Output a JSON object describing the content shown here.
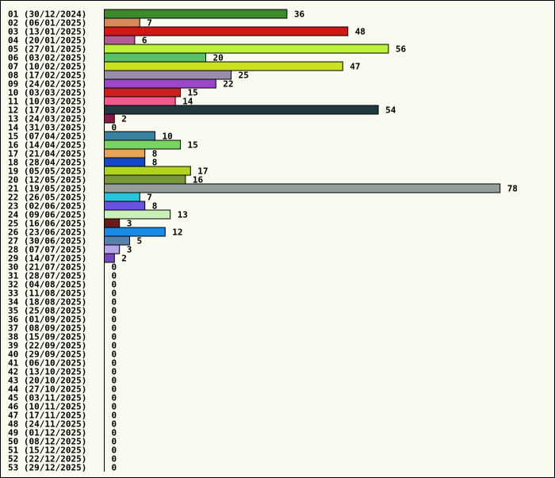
{
  "chart_data": {
    "type": "bar",
    "orientation": "horizontal",
    "title": "",
    "xlabel": "",
    "ylabel": "",
    "xlim": [
      0,
      78
    ],
    "grid": false,
    "legend": "none",
    "categories": [
      "01 (30/12/2024)",
      "02 (06/01/2025)",
      "03 (13/01/2025)",
      "04 (20/01/2025)",
      "05 (27/01/2025)",
      "06 (03/02/2025)",
      "07 (10/02/2025)",
      "08 (17/02/2025)",
      "09 (24/02/2025)",
      "10 (03/03/2025)",
      "11 (10/03/2025)",
      "12 (17/03/2025)",
      "13 (24/03/2025)",
      "14 (31/03/2025)",
      "15 (07/04/2025)",
      "16 (14/04/2025)",
      "17 (21/04/2025)",
      "18 (28/04/2025)",
      "19 (05/05/2025)",
      "20 (12/05/2025)",
      "21 (19/05/2025)",
      "22 (26/05/2025)",
      "23 (02/06/2025)",
      "24 (09/06/2025)",
      "25 (16/06/2025)",
      "26 (23/06/2025)",
      "27 (30/06/2025)",
      "28 (07/07/2025)",
      "29 (14/07/2025)",
      "30 (21/07/2025)",
      "31 (28/07/2025)",
      "32 (04/08/2025)",
      "33 (11/08/2025)",
      "34 (18/08/2025)",
      "35 (25/08/2025)",
      "36 (01/09/2025)",
      "37 (08/09/2025)",
      "38 (15/09/2025)",
      "39 (22/09/2025)",
      "40 (29/09/2025)",
      "41 (06/10/2025)",
      "42 (13/10/2025)",
      "43 (20/10/2025)",
      "44 (27/10/2025)",
      "45 (03/11/2025)",
      "46 (10/11/2025)",
      "47 (17/11/2025)",
      "48 (24/11/2025)",
      "49 (01/12/2025)",
      "50 (08/12/2025)",
      "51 (15/12/2025)",
      "52 (22/12/2025)",
      "53 (29/12/2025)"
    ],
    "values": [
      36,
      7,
      48,
      6,
      56,
      20,
      47,
      25,
      22,
      15,
      14,
      54,
      2,
      0,
      10,
      15,
      8,
      8,
      17,
      16,
      78,
      7,
      8,
      13,
      3,
      12,
      5,
      3,
      2,
      0,
      0,
      0,
      0,
      0,
      0,
      0,
      0,
      0,
      0,
      0,
      0,
      0,
      0,
      0,
      0,
      0,
      0,
      0,
      0,
      0,
      0,
      0,
      0
    ],
    "colors": [
      "#3d8a2d",
      "#d68a5a",
      "#d11616",
      "#b45a96",
      "#b9f238",
      "#5ac06a",
      "#cce21f",
      "#9a8eaa",
      "#9c47c8",
      "#cc2020",
      "#f25a8e",
      "#213a40",
      "#8a1a4a",
      "#ffffff",
      "#3a80a0",
      "#7ad462",
      "#e8a455",
      "#1448c8",
      "#b3d41f",
      "#7a9a3a",
      "#949e9a",
      "#28c2da",
      "#6a52e0",
      "#c8f0b8",
      "#6a1a1a",
      "#1a8ae8",
      "#5a80b0",
      "#b8a4e8",
      "#7448c0",
      "#ffffff",
      "#ffffff",
      "#ffffff",
      "#ffffff",
      "#ffffff",
      "#ffffff",
      "#ffffff",
      "#ffffff",
      "#ffffff",
      "#ffffff",
      "#ffffff",
      "#ffffff",
      "#ffffff",
      "#ffffff",
      "#ffffff",
      "#ffffff",
      "#ffffff",
      "#ffffff",
      "#ffffff",
      "#ffffff",
      "#ffffff",
      "#ffffff",
      "#ffffff",
      "#ffffff"
    ],
    "bar_outline": "#000000",
    "background": "#fafaf0"
  }
}
